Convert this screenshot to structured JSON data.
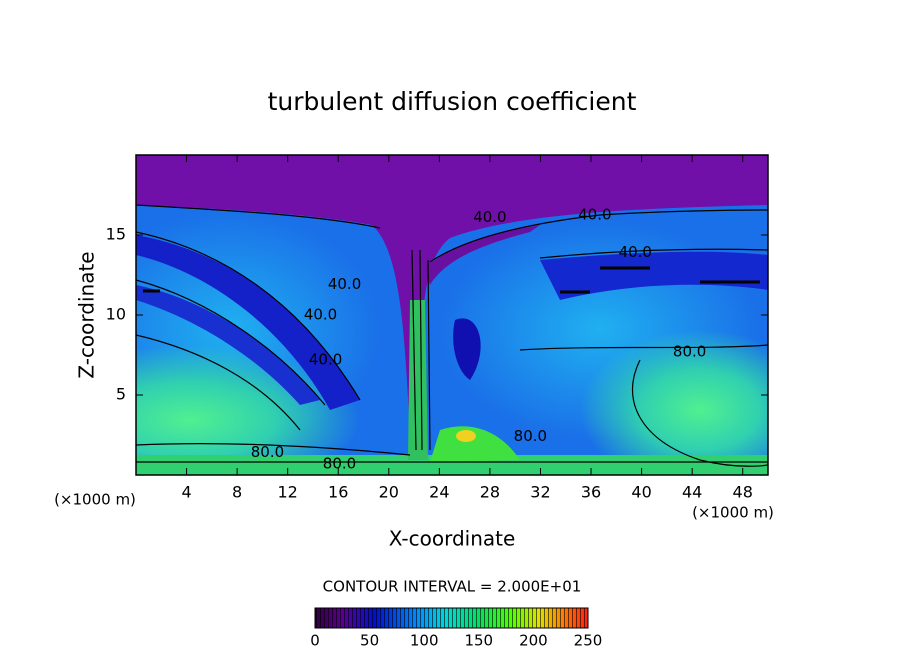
{
  "chart_data": {
    "type": "contour",
    "title": "turbulent diffusion coefficient",
    "x_label": "X-coordinate",
    "y_label": "Z-coordinate",
    "x_unit": "(×1000 m)",
    "xlim": [
      0,
      50
    ],
    "xticks": [
      4,
      8,
      12,
      16,
      20,
      24,
      28,
      32,
      36,
      40,
      44,
      48
    ],
    "ylim": [
      0,
      20
    ],
    "yticks": [
      5,
      10,
      15
    ],
    "contour_interval_text": "CONTOUR INTERVAL = 2.000E+01",
    "colorbar_lim": [
      0,
      250
    ],
    "colorbar_ticks": [
      0,
      50,
      100,
      150,
      200,
      250
    ],
    "contour_labels": [
      {
        "text": "40.0",
        "x": 28,
        "y": 16.1
      },
      {
        "text": "40.0",
        "x": 36.3,
        "y": 16.25
      },
      {
        "text": "40.0",
        "x": 39.5,
        "y": 13.9
      },
      {
        "text": "40.0",
        "x": 16.5,
        "y": 11.9
      },
      {
        "text": "40.0",
        "x": 14.6,
        "y": 10
      },
      {
        "text": "40.0",
        "x": 15,
        "y": 7.2
      },
      {
        "text": "80.0",
        "x": 43.8,
        "y": 7.7
      },
      {
        "text": "80.0",
        "x": 10.4,
        "y": 1.4
      },
      {
        "text": "80.0",
        "x": 16.1,
        "y": 0.7
      },
      {
        "text": "80.0",
        "x": 31.2,
        "y": 2.4
      }
    ]
  }
}
